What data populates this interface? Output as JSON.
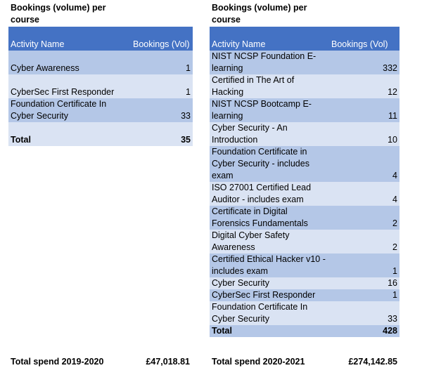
{
  "left": {
    "heading": "Bookings (volume) per course",
    "col_activity": "Activity Name",
    "col_bookings": "Bookings (Vol)",
    "rows": [
      {
        "name": "Cyber Awareness",
        "value": "1"
      },
      {
        "name": "CyberSec First Responder",
        "value": "1"
      },
      {
        "name": "Foundation Certificate In Cyber Security",
        "value": "33"
      }
    ],
    "total_label": "Total",
    "total_value": "35",
    "spend_label": "Total spend 2019-2020",
    "spend_value": "£47,018.81"
  },
  "right": {
    "heading": "Bookings (volume) per course",
    "col_activity": "Activity Name",
    "col_bookings": "Bookings (Vol)",
    "rows": [
      {
        "name": "NIST NCSP Foundation E-learning",
        "value": "332"
      },
      {
        "name": "Certified in The Art of Hacking",
        "value": "12"
      },
      {
        "name": "NIST NCSP Bootcamp E-learning",
        "value": "11"
      },
      {
        "name": "Cyber Security - An Introduction",
        "value": "10"
      },
      {
        "name": "Foundation Certificate in Cyber Security - includes exam",
        "value": "4"
      },
      {
        "name": "ISO 27001 Certified Lead Auditor - includes exam",
        "value": "4"
      },
      {
        "name": "Certificate in Digital Forensics Fundamentals",
        "value": "2"
      },
      {
        "name": "Digital Cyber Safety Awareness",
        "value": "2"
      },
      {
        "name": "Certified Ethical Hacker v10 - includes exam",
        "value": "1"
      },
      {
        "name": "Cyber Security",
        "value": "16"
      },
      {
        "name": "CyberSec First Responder",
        "value": "1"
      },
      {
        "name": "Foundation Certificate In Cyber Security",
        "value": "33"
      }
    ],
    "total_label": "Total",
    "total_value": "428",
    "spend_label": "Total spend 2020-2021",
    "spend_value": "£274,142.85"
  }
}
